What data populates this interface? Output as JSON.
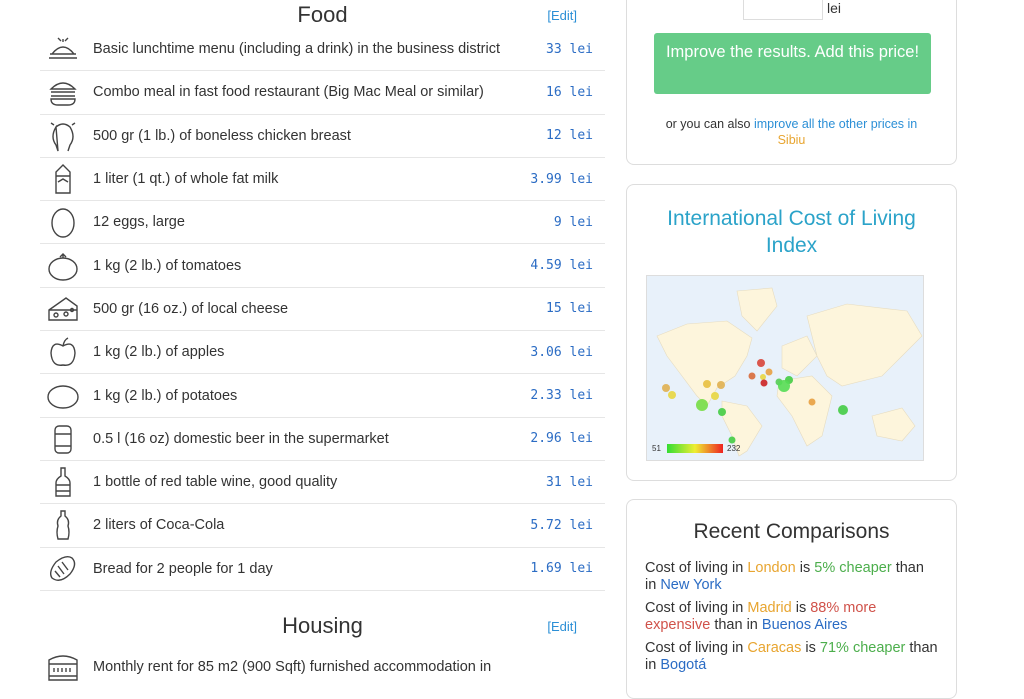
{
  "food": {
    "title": "Food",
    "edit": "[Edit]",
    "items": [
      {
        "icon": "lunch-icon",
        "name": "Basic lunchtime menu (including a drink) in the business district",
        "price": "33 lei"
      },
      {
        "icon": "burger-icon",
        "name": "Combo meal in fast food restaurant (Big Mac Meal or similar)",
        "price": "16 lei"
      },
      {
        "icon": "chicken-icon",
        "name": "500 gr (1 lb.) of boneless chicken breast",
        "price": "12 lei"
      },
      {
        "icon": "milk-icon",
        "name": "1 liter (1 qt.) of whole fat milk",
        "price": "3.99 lei"
      },
      {
        "icon": "egg-icon",
        "name": "12 eggs, large",
        "price": "9 lei"
      },
      {
        "icon": "tomato-icon",
        "name": "1 kg (2 lb.) of tomatoes",
        "price": "4.59 lei"
      },
      {
        "icon": "cheese-icon",
        "name": "500 gr (16 oz.) of local cheese",
        "price": "15 lei"
      },
      {
        "icon": "apple-icon",
        "name": "1 kg (2 lb.) of apples",
        "price": "3.06 lei"
      },
      {
        "icon": "potato-icon",
        "name": "1 kg (2 lb.) of potatoes",
        "price": "2.33 lei"
      },
      {
        "icon": "beer-icon",
        "name": "0.5 l (16 oz) domestic beer in the supermarket",
        "price": "2.96 lei"
      },
      {
        "icon": "wine-icon",
        "name": "1 bottle of red table wine, good quality",
        "price": "31 lei"
      },
      {
        "icon": "cola-icon",
        "name": "2 liters of Coca-Cola",
        "price": "5.72 lei"
      },
      {
        "icon": "bread-icon",
        "name": "Bread for 2 people for 1 day",
        "price": "1.69 lei"
      }
    ]
  },
  "housing": {
    "title": "Housing",
    "edit": "[Edit]",
    "items": [
      {
        "icon": "building-icon",
        "name": "Monthly rent for 85 m2 (900 Sqft) furnished accommodation in"
      }
    ]
  },
  "add_price": {
    "currency": "lei",
    "button": "Improve the results. Add this price!",
    "also_prefix": "or you can also",
    "also_link": "improve all the other prices in",
    "city": "Sibiu"
  },
  "index_map": {
    "title": "International Cost of Living Index",
    "legend_min": "51",
    "legend_max": "232"
  },
  "recent": {
    "title": "Recent Comparisons",
    "items": [
      {
        "p1": "Cost of living in",
        "c1": "London",
        "p2": "is",
        "diff": "5% cheaper",
        "tone": "grn",
        "p3": "than in",
        "c2": "New York"
      },
      {
        "p1": "Cost of living in",
        "c1": "Madrid",
        "p2": "is",
        "diff": "88% more expensive",
        "tone": "red",
        "p3": "than in",
        "c2": "Buenos Aires"
      },
      {
        "p1": "Cost of living in",
        "c1": "Caracas",
        "p2": "is",
        "diff": "71% cheaper",
        "tone": "grn",
        "p3": "than in",
        "c2": "Bogotá"
      }
    ]
  }
}
